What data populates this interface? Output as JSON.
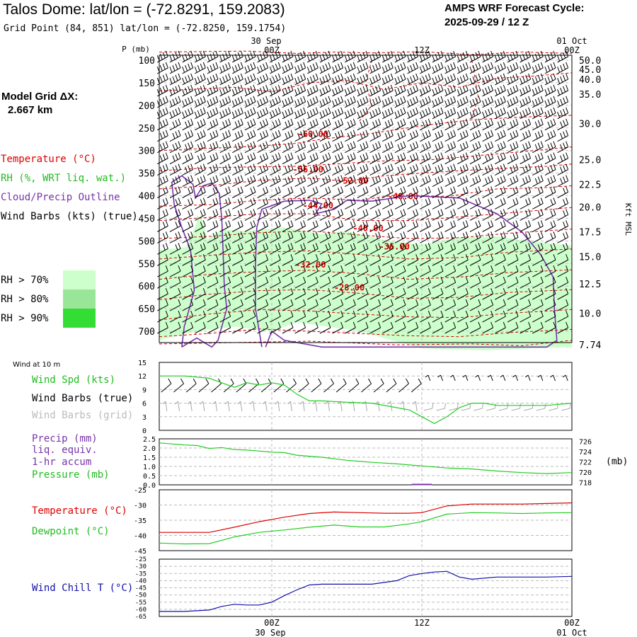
{
  "header": {
    "title": "Talos Dome:  lat/lon = (-72.8291, 159.2083)",
    "subtitle": "Grid Point (84, 851) lat/lon = (-72.8250, 159.1754)",
    "cycle_line1": "AMPS WRF Forecast Cycle:",
    "cycle_line2": "2025-09-29 / 12  Z",
    "grid_label": "Model Grid ΔX:",
    "grid_value": "2.667 km"
  },
  "legend": {
    "temperature": "Temperature (°C)",
    "rh": "RH (%, WRT liq. wat.)",
    "cloud": "Cloud/Precip Outline",
    "wind": "Wind Barbs (kts) (true)",
    "rh70": "RH > 70%",
    "rh80": "RH > 80%",
    "rh90": "RH > 90%",
    "rh_colors": [
      "#ccffcc",
      "#99e699",
      "#33dd33"
    ]
  },
  "colors": {
    "temp": "#dd0000",
    "rh": "#33cc33",
    "cloud": "#7733aa",
    "wind": "#000000",
    "dew": "#22cc22",
    "chill": "#1111aa"
  },
  "chart_data": [
    {
      "type": "line",
      "name": "sounding-cross-section",
      "p_label": "P (mb)",
      "right_label": "Kft MSL",
      "time_top": [
        {
          "t": 0,
          "label": "30 Sep",
          "sub": "00Z"
        },
        {
          "t": 12,
          "label": "",
          "sub": "12Z"
        },
        {
          "t": 24,
          "label": "01 Oct",
          "sub": "00Z"
        }
      ],
      "xlim": [
        -9,
        24
      ],
      "pressure_ticks": [
        "100",
        "150",
        "200",
        "250",
        "300",
        "350",
        "400",
        "450",
        "500",
        "550",
        "600",
        "650",
        "700"
      ],
      "kft_ticks": [
        "50.0",
        "45.0",
        "40.0",
        "35.0",
        "30.0",
        "25.0",
        "22.5",
        "20.0",
        "17.5",
        "15.0",
        "12.5",
        "10.0",
        "7.74"
      ],
      "kft_pressure": [
        100,
        120,
        142,
        175,
        240,
        320,
        375,
        425,
        480,
        535,
        595,
        660,
        730
      ],
      "isotherm_labels": [
        {
          "label": "-60.00",
          "t": 3.3,
          "p": 270
        },
        {
          "label": "-56.00",
          "t": 2.9,
          "p": 348
        },
        {
          "label": "-52.00",
          "t": 6.5,
          "p": 373
        },
        {
          "label": "-48.00",
          "t": 10.5,
          "p": 408
        },
        {
          "label": "-44.00",
          "t": 3.7,
          "p": 428
        },
        {
          "label": "-40.00",
          "t": 7.7,
          "p": 478
        },
        {
          "label": "-36.00",
          "t": 9.8,
          "p": 519
        },
        {
          "label": "-32.00",
          "t": 3.1,
          "p": 559
        },
        {
          "label": "-28.00",
          "t": 6.2,
          "p": 610
        }
      ]
    },
    {
      "type": "line",
      "name": "wind-10m",
      "label": "Wind at 10 m",
      "series_labels": [
        "Wind Spd (kts)",
        "Wind Barbs (true)",
        "Wind Barbs (grid)"
      ],
      "yticks": [
        "15",
        "12",
        "9",
        "6",
        "3",
        "0"
      ],
      "ylim": [
        0,
        15
      ],
      "x": [
        -9,
        -7,
        -5,
        -4,
        -3,
        -2,
        -1,
        0,
        1,
        2,
        3,
        4,
        6,
        8,
        10,
        11,
        12,
        13,
        14,
        15,
        16,
        17,
        18,
        20,
        22,
        24
      ],
      "values": [
        12,
        12,
        11.5,
        10.5,
        9.5,
        10.5,
        10,
        10.5,
        10,
        8,
        6.5,
        6.5,
        6.2,
        6,
        5,
        4.5,
        3,
        1.5,
        3,
        5,
        6,
        6,
        5.5,
        5.5,
        5.5,
        6
      ]
    },
    {
      "type": "line",
      "name": "precip-pressure",
      "series_labels": [
        "Precip (mm)",
        "liq. equiv.",
        "1-hr accum",
        "Pressure (mb)"
      ],
      "right_unit": "(mb)",
      "yticks_left": [
        "2.5",
        "2.0",
        "1.5",
        "1.0",
        "0.5",
        "0.0"
      ],
      "yticks_right": [
        "726",
        "724",
        "722",
        "720",
        "718"
      ],
      "ylim_left": [
        0,
        2.5
      ],
      "ylim_right": [
        717.5,
        726.5
      ],
      "x": [
        -9,
        -8,
        -7,
        -6,
        -5,
        -4,
        -3,
        -2,
        -1,
        0,
        1,
        2,
        3,
        4,
        5,
        6,
        8,
        10,
        12,
        14,
        16,
        18,
        20,
        22,
        24
      ],
      "values": [
        725.7,
        725.5,
        725.3,
        725.2,
        724.6,
        724.8,
        724.4,
        724.3,
        724.1,
        723.9,
        723.8,
        723.3,
        723.1,
        722.9,
        722.6,
        722.3,
        721.9,
        721.6,
        721.2,
        720.8,
        720.6,
        720.2,
        719.9,
        719.7,
        719.9
      ],
      "precip": [
        {
          "t": 12,
          "v": 0.02
        }
      ]
    },
    {
      "type": "line",
      "name": "temp-dewpoint",
      "series_labels": [
        "Temperature (°C)",
        "Dewpoint (°C)"
      ],
      "yticks": [
        "-25",
        "-30",
        "-35",
        "-40",
        "-45"
      ],
      "ylim": [
        -45,
        -25
      ],
      "x": [
        -9,
        -7,
        -5,
        -3,
        -1,
        1,
        3,
        5,
        7,
        9,
        11,
        12,
        14,
        16,
        18,
        20,
        22,
        24
      ],
      "series": [
        {
          "name": "Temperature",
          "values": [
            -39,
            -39,
            -39,
            -37.3,
            -35.5,
            -34,
            -32.8,
            -32.3,
            -32.5,
            -32.7,
            -32.7,
            -32.5,
            -30.3,
            -29.7,
            -29.7,
            -29.7,
            -29.5,
            -29.3
          ]
        },
        {
          "name": "Dewpoint",
          "values": [
            -42.5,
            -42.8,
            -42.7,
            -40.5,
            -39,
            -38.2,
            -37.3,
            -36.6,
            -37.2,
            -37.2,
            -36.2,
            -35.5,
            -33,
            -32.5,
            -32.6,
            -32.8,
            -32.6,
            -32.5
          ]
        }
      ]
    },
    {
      "type": "line",
      "name": "wind-chill",
      "series_labels": [
        "Wind Chill T (°C)"
      ],
      "yticks": [
        "-25",
        "-30",
        "-35",
        "-40",
        "-45",
        "-50",
        "-55",
        "-60",
        "-65"
      ],
      "ylim": [
        -65,
        -25
      ],
      "time_bottom": [
        {
          "t": 0,
          "label": "30 Sep",
          "sub": "00Z"
        },
        {
          "t": 12,
          "label": "",
          "sub": "12Z"
        },
        {
          "t": 24,
          "label": "01 Oct",
          "sub": "00Z"
        }
      ],
      "x": [
        -9,
        -7,
        -5,
        -4,
        -3,
        -2,
        -1,
        0,
        1,
        2,
        3,
        4,
        6,
        8,
        10,
        11,
        12,
        13,
        14,
        15,
        16,
        18,
        20,
        22,
        24
      ],
      "values": [
        -61.5,
        -61.5,
        -60.5,
        -58,
        -56.5,
        -57,
        -57,
        -55,
        -50.5,
        -46.5,
        -43,
        -42.5,
        -42.5,
        -42.5,
        -40,
        -36.5,
        -35,
        -34,
        -33.5,
        -37.5,
        -39,
        -37.5,
        -37.5,
        -37.5,
        -37
      ]
    }
  ]
}
